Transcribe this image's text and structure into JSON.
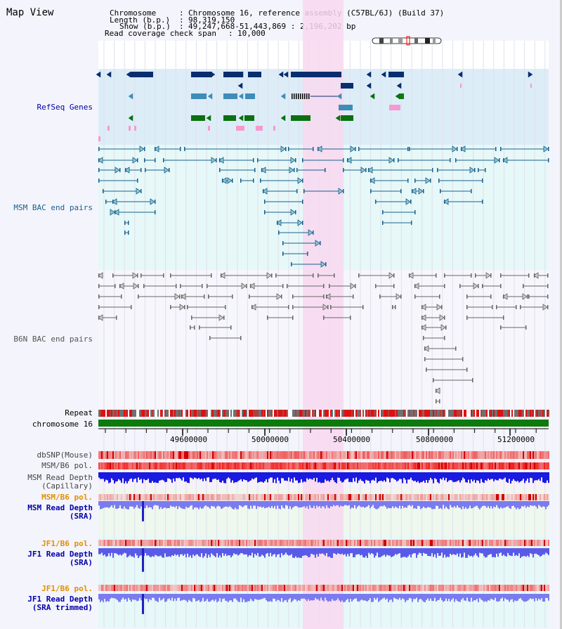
{
  "title": "Map View",
  "header": {
    "chromosome_key": "Chromosome",
    "chromosome_value": "Chromosome 16, reference assembly (C57BL/6J) (Build 37)",
    "length_key": "Length (b.p.)",
    "length_value": "98,319,150",
    "show_key": "Show (b.p.)",
    "show_value": "49,247,668-51,443,869 : 2,196,202 bp",
    "coverage_key": "Read coverage check span",
    "coverage_value": "10,000"
  },
  "tracks": {
    "refseq": "RefSeq Genes",
    "msm_bac": "MSM BAC end pairs",
    "b6n_bac": "B6N BAC end pairs",
    "repeat": "Repeat",
    "chromosome": "chromosome 16",
    "dbsnp": "dbSNP(Mouse)",
    "msm_b6_pol": "MSM/B6 pol.",
    "msm_depth_cap_1": "MSM Read Depth",
    "msm_depth_cap_2": "(Capillary)",
    "msm_b6_pol2": "MSM/B6 pol.",
    "msm_depth_sra_1": "MSM Read Depth",
    "msm_depth_sra_2": "(SRA)",
    "jf1_b6_pol": "JF1/B6 pol.",
    "jf1_depth_sra_1": "JF1 Read Depth",
    "jf1_depth_sra_2": "(SRA)",
    "jf1_b6_pol2": "JF1/B6 pol.",
    "jf1_depth_trim_1": "JF1 Read Depth",
    "jf1_depth_trim_2": "(SRA trimmed)"
  },
  "axis": {
    "ticks": [
      "49600000",
      "50000000",
      "50400000",
      "50800000",
      "51200000"
    ]
  },
  "colors": {
    "refseq_bg": "#dcedf8",
    "msm_bg": "#e6f8f8",
    "highlight": "#f8d8f0",
    "dark_gene": "#0a2d6e",
    "mid_gene": "#3e8cb8",
    "green_gene": "#0a7010",
    "pink_gene": "#f59ad0",
    "msm_link": "#1a5f8a",
    "b6n_link": "#666666",
    "orange_label": "#e09000",
    "blue_label": "#0000aa",
    "chrom_green": "#0d7a0d",
    "depth_blue": "#1a1ae0",
    "depth_light": "#7b7bf0"
  }
}
